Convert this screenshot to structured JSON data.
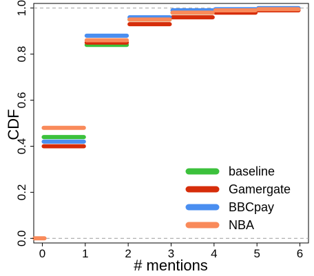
{
  "chart_data": {
    "type": "step",
    "xlabel": "# mentions",
    "ylabel": "CDF",
    "xlim": [
      -0.2,
      6.2
    ],
    "ylim": [
      -0.02,
      1.02
    ],
    "xticks": [
      0,
      1,
      2,
      3,
      4,
      5,
      6
    ],
    "yticks": [
      0.0,
      0.2,
      0.4,
      0.6,
      0.8,
      1.0
    ],
    "ytick_labels": [
      "0.0",
      "0.2",
      "0.4",
      "0.6",
      "0.8",
      "1.0"
    ],
    "reference_lines": [
      0.0,
      1.0
    ],
    "legend_position": "bottom-right",
    "series": [
      {
        "name": "baseline",
        "color": "#3cc13c",
        "x": [
          0,
          1,
          2,
          3,
          4,
          5
        ],
        "y": [
          0.44,
          0.84,
          0.95,
          0.98,
          0.99,
          0.995
        ]
      },
      {
        "name": "Gamergate",
        "color": "#d62d0a",
        "x": [
          0,
          1,
          2,
          3,
          4,
          5
        ],
        "y": [
          0.4,
          0.85,
          0.93,
          0.96,
          0.98,
          0.99
        ]
      },
      {
        "name": "BBCpay",
        "color": "#4a8ef0",
        "x": [
          0,
          1,
          2,
          3,
          4,
          5
        ],
        "y": [
          0.42,
          0.88,
          0.96,
          0.99,
          0.995,
          1.0
        ]
      },
      {
        "name": "NBA",
        "color": "#f98a5a",
        "x": [
          0,
          1,
          2,
          3,
          4,
          5
        ],
        "y": [
          0.48,
          0.86,
          0.95,
          0.98,
          0.99,
          0.995
        ]
      }
    ]
  }
}
